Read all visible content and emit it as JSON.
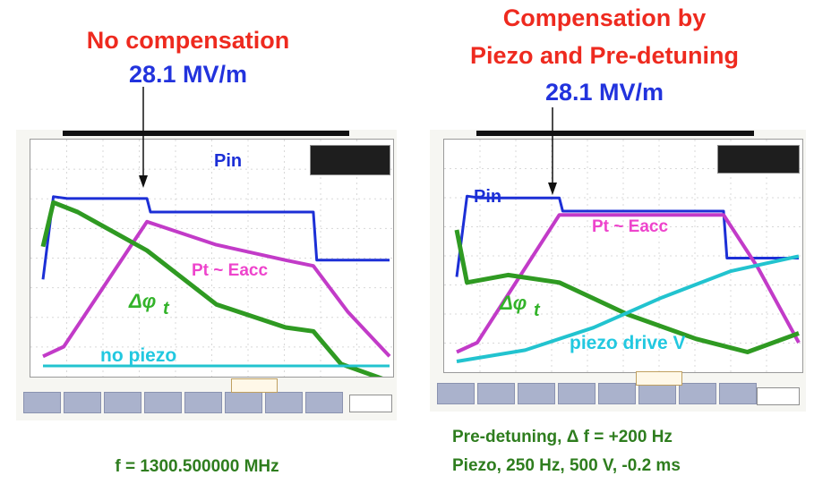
{
  "left": {
    "title": "No compensation",
    "field": "28.1 MV/m",
    "labels": {
      "pin": "Pin",
      "pt": "Pt ~ Eacc",
      "dphi": "Δφ",
      "dphi_sub": "t",
      "extra": "no piezo"
    }
  },
  "right": {
    "title_line1": "Compensation by",
    "title_line2": "Piezo and Pre-detuning",
    "field": "28.1 MV/m",
    "labels": {
      "pin": "Pin",
      "pt": "Pt ~ Eacc",
      "dphi": "Δφ",
      "dphi_sub": "t",
      "extra": "piezo drive V"
    }
  },
  "footer": {
    "freq": "f = 1300.500000 MHz",
    "detune": "Pre-detuning, Δ f = +200 Hz",
    "piezo": "Piezo, 250 Hz, 500 V, -0.2 ms"
  },
  "colors": {
    "title_red": "#ee2a1f",
    "title_blue": "#2233dd",
    "caption_green": "#2e7d1e",
    "pin": "#1c2fd6",
    "pt": "#c23bc8",
    "dphi": "#2f9a22",
    "piezo": "#22c3cf",
    "label_pink": "#ee44cc",
    "label_green": "#33b32a",
    "label_cyan": "#22c8e0"
  },
  "chart_data": [
    {
      "type": "line",
      "title": "No compensation",
      "subtitle": "28.1 MV/m",
      "xlabel": "",
      "ylabel": "",
      "grid": true,
      "series": [
        {
          "name": "Pin",
          "x": [
            0,
            0.03,
            0.07,
            0.3,
            0.31,
            0.78,
            0.79,
            1.0
          ],
          "y": [
            0.45,
            0.88,
            0.87,
            0.87,
            0.8,
            0.8,
            0.55,
            0.55
          ]
        },
        {
          "name": "Pt ~ Eacc",
          "x": [
            0,
            0.06,
            0.3,
            0.5,
            0.7,
            0.78,
            0.88,
            1.0
          ],
          "y": [
            0.05,
            0.1,
            0.75,
            0.63,
            0.55,
            0.52,
            0.28,
            0.05
          ]
        },
        {
          "name": "Δφ t",
          "x": [
            0,
            0.03,
            0.1,
            0.3,
            0.5,
            0.7,
            0.78,
            0.86,
            1.0
          ],
          "y": [
            0.62,
            0.85,
            0.8,
            0.6,
            0.32,
            0.2,
            0.18,
            0.01,
            -0.08
          ]
        },
        {
          "name": "no piezo",
          "x": [
            0,
            1.0
          ],
          "y": [
            0.0,
            0.0
          ]
        }
      ]
    },
    {
      "type": "line",
      "title": "Compensation by Piezo and Pre-detuning",
      "subtitle": "28.1 MV/m",
      "xlabel": "",
      "ylabel": "",
      "grid": true,
      "series": [
        {
          "name": "Pin",
          "x": [
            0,
            0.03,
            0.07,
            0.3,
            0.31,
            0.78,
            0.79,
            1.0
          ],
          "y": [
            0.45,
            0.88,
            0.87,
            0.87,
            0.8,
            0.8,
            0.55,
            0.55
          ]
        },
        {
          "name": "Pt ~ Eacc",
          "x": [
            0,
            0.06,
            0.3,
            0.78,
            0.88,
            1.0
          ],
          "y": [
            0.05,
            0.1,
            0.78,
            0.78,
            0.5,
            0.1
          ]
        },
        {
          "name": "Δφ t",
          "x": [
            0,
            0.03,
            0.15,
            0.3,
            0.5,
            0.7,
            0.85,
            1.0
          ],
          "y": [
            0.7,
            0.42,
            0.46,
            0.42,
            0.25,
            0.12,
            0.05,
            0.15
          ]
        },
        {
          "name": "piezo drive V",
          "x": [
            0,
            0.2,
            0.4,
            0.6,
            0.8,
            1.0
          ],
          "y": [
            0.0,
            0.06,
            0.18,
            0.34,
            0.48,
            0.56
          ]
        }
      ]
    }
  ]
}
